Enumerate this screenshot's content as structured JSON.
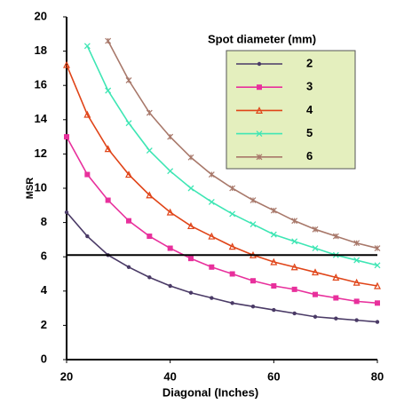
{
  "chart_data": {
    "type": "line",
    "x_label": "Diagonal (Inches)",
    "y_label": "MSR",
    "legend_title": "Spot diameter (mm)",
    "legend_position": "upper right",
    "x": [
      20,
      24,
      28,
      32,
      36,
      40,
      44,
      48,
      52,
      56,
      60,
      64,
      68,
      72,
      76,
      80
    ],
    "series": [
      {
        "name": "2",
        "color": "#4a3a66",
        "marker": "circle",
        "values": [
          8.6,
          7.2,
          6.1,
          5.4,
          4.8,
          4.3,
          3.9,
          3.6,
          3.3,
          3.1,
          2.9,
          2.7,
          2.5,
          2.4,
          2.3,
          2.2
        ]
      },
      {
        "name": "3",
        "color": "#e8309c",
        "marker": "square",
        "values": [
          13.0,
          10.8,
          9.3,
          8.1,
          7.2,
          6.5,
          5.9,
          5.4,
          5.0,
          4.6,
          4.3,
          4.1,
          3.8,
          3.6,
          3.4,
          3.3
        ]
      },
      {
        "name": "4",
        "color": "#e04418",
        "marker": "triangle",
        "values": [
          17.2,
          14.3,
          12.3,
          10.8,
          9.6,
          8.6,
          7.8,
          7.2,
          6.6,
          6.1,
          5.7,
          5.4,
          5.1,
          4.8,
          4.5,
          4.3
        ]
      },
      {
        "name": "5",
        "color": "#3ee6b4",
        "marker": "x",
        "values": [
          null,
          18.3,
          15.7,
          13.8,
          12.2,
          11.0,
          10.0,
          9.2,
          8.5,
          7.9,
          7.3,
          6.9,
          6.5,
          6.1,
          5.8,
          5.5
        ]
      },
      {
        "name": "6",
        "color": "#a8786a",
        "marker": "star",
        "values": [
          null,
          null,
          18.6,
          16.3,
          14.4,
          13.0,
          11.8,
          10.8,
          10.0,
          9.3,
          8.7,
          8.1,
          7.6,
          7.2,
          6.8,
          6.5
        ]
      }
    ],
    "reference_line": 6.1,
    "xlim": [
      20,
      80
    ],
    "xticks": [
      20,
      40,
      60,
      80
    ],
    "ylim": [
      0,
      20
    ],
    "yticks": [
      0,
      2,
      4,
      6,
      8,
      10,
      12,
      14,
      16,
      18,
      20
    ]
  }
}
